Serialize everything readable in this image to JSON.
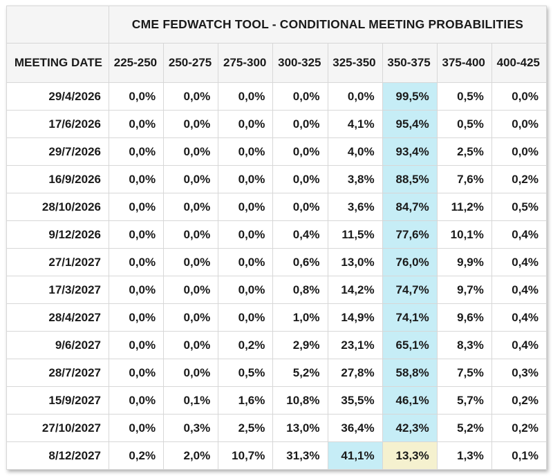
{
  "window": {
    "title": "CME FedWatch conditional meeting probabilities table"
  },
  "colors": {
    "cyan_highlight": "#c6edf6",
    "yellow_highlight": "#f5f1cf",
    "header_bg": "#f5f5f5",
    "border": "#d7d7d7",
    "text": "#1a1a1a",
    "background": "#ffffff"
  },
  "chart_data": {
    "type": "table",
    "title": "CME FEDWATCH TOOL - CONDITIONAL MEETING PROBABILITIES",
    "row_header_label": "MEETING DATE",
    "columns": [
      "225-250",
      "250-275",
      "275-300",
      "300-325",
      "325-350",
      "350-375",
      "375-400",
      "400-425"
    ],
    "value_format": "percent-comma-decimal",
    "rows": [
      {
        "date": "29/4/2026",
        "values": [
          "0,0%",
          "0,0%",
          "0,0%",
          "0,0%",
          "0,0%",
          "99,5%",
          "0,5%",
          "0,0%"
        ],
        "highlights": {
          "5": "cyan"
        }
      },
      {
        "date": "17/6/2026",
        "values": [
          "0,0%",
          "0,0%",
          "0,0%",
          "0,0%",
          "4,1%",
          "95,4%",
          "0,5%",
          "0,0%"
        ],
        "highlights": {
          "5": "cyan"
        }
      },
      {
        "date": "29/7/2026",
        "values": [
          "0,0%",
          "0,0%",
          "0,0%",
          "0,0%",
          "4,0%",
          "93,4%",
          "2,5%",
          "0,0%"
        ],
        "highlights": {
          "5": "cyan"
        }
      },
      {
        "date": "16/9/2026",
        "values": [
          "0,0%",
          "0,0%",
          "0,0%",
          "0,0%",
          "3,8%",
          "88,5%",
          "7,6%",
          "0,2%"
        ],
        "highlights": {
          "5": "cyan"
        }
      },
      {
        "date": "28/10/2026",
        "values": [
          "0,0%",
          "0,0%",
          "0,0%",
          "0,0%",
          "3,6%",
          "84,7%",
          "11,2%",
          "0,5%"
        ],
        "highlights": {
          "5": "cyan"
        }
      },
      {
        "date": "9/12/2026",
        "values": [
          "0,0%",
          "0,0%",
          "0,0%",
          "0,4%",
          "11,5%",
          "77,6%",
          "10,1%",
          "0,4%"
        ],
        "highlights": {
          "5": "cyan"
        }
      },
      {
        "date": "27/1/2027",
        "values": [
          "0,0%",
          "0,0%",
          "0,0%",
          "0,6%",
          "13,0%",
          "76,0%",
          "9,9%",
          "0,4%"
        ],
        "highlights": {
          "5": "cyan"
        }
      },
      {
        "date": "17/3/2027",
        "values": [
          "0,0%",
          "0,0%",
          "0,0%",
          "0,8%",
          "14,2%",
          "74,7%",
          "9,7%",
          "0,4%"
        ],
        "highlights": {
          "5": "cyan"
        }
      },
      {
        "date": "28/4/2027",
        "values": [
          "0,0%",
          "0,0%",
          "0,0%",
          "1,0%",
          "14,9%",
          "74,1%",
          "9,6%",
          "0,4%"
        ],
        "highlights": {
          "5": "cyan"
        }
      },
      {
        "date": "9/6/2027",
        "values": [
          "0,0%",
          "0,0%",
          "0,2%",
          "2,9%",
          "23,1%",
          "65,1%",
          "8,3%",
          "0,4%"
        ],
        "highlights": {
          "5": "cyan"
        }
      },
      {
        "date": "28/7/2027",
        "values": [
          "0,0%",
          "0,0%",
          "0,5%",
          "5,2%",
          "27,8%",
          "58,8%",
          "7,5%",
          "0,3%"
        ],
        "highlights": {
          "5": "cyan"
        }
      },
      {
        "date": "15/9/2027",
        "values": [
          "0,0%",
          "0,1%",
          "1,6%",
          "10,8%",
          "35,5%",
          "46,1%",
          "5,7%",
          "0,2%"
        ],
        "highlights": {
          "5": "cyan"
        }
      },
      {
        "date": "27/10/2027",
        "values": [
          "0,0%",
          "0,3%",
          "2,5%",
          "13,0%",
          "36,4%",
          "42,3%",
          "5,2%",
          "0,2%"
        ],
        "highlights": {
          "5": "cyan"
        }
      },
      {
        "date": "8/12/2027",
        "values": [
          "0,2%",
          "2,0%",
          "10,7%",
          "31,3%",
          "41,1%",
          "13,3%",
          "1,3%",
          "0,1%"
        ],
        "highlights": {
          "4": "cyan",
          "5": "yellow"
        }
      }
    ]
  }
}
